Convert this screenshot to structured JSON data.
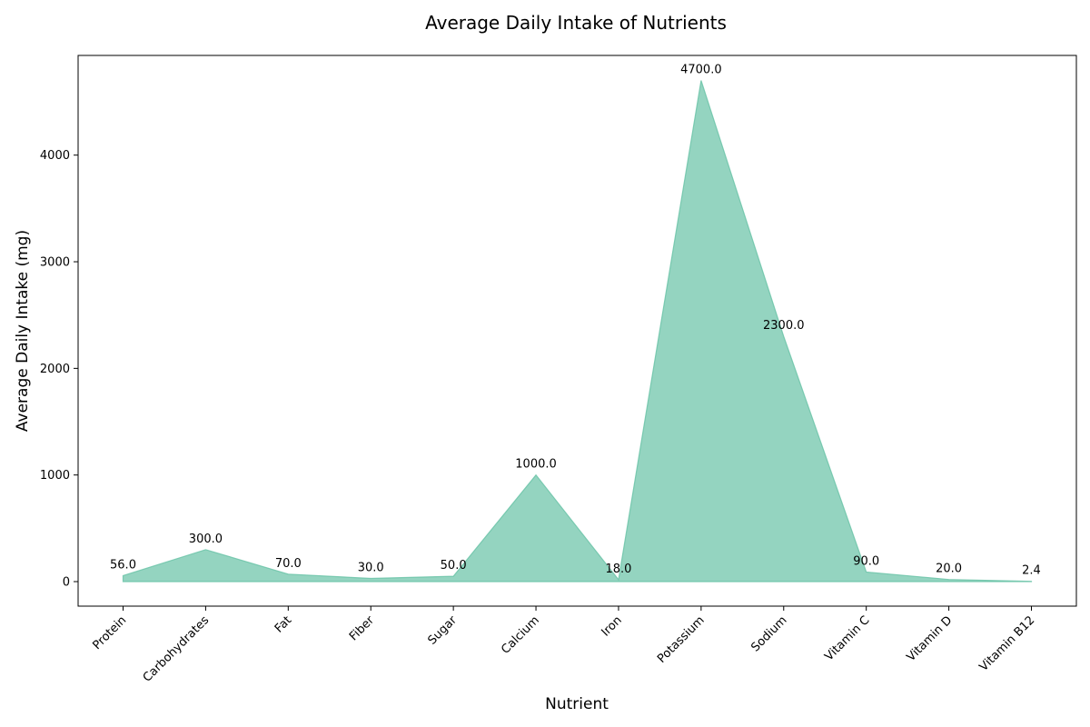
{
  "chart_data": {
    "type": "area",
    "title": "Average Daily Intake of Nutrients",
    "xlabel": "Nutrient",
    "ylabel": "Average Daily Intake (mg)",
    "categories": [
      "Protein",
      "Carbohydrates",
      "Fat",
      "Fiber",
      "Sugar",
      "Calcium",
      "Iron",
      "Potassium",
      "Sodium",
      "Vitamin C",
      "Vitamin D",
      "Vitamin B12"
    ],
    "values": [
      56.0,
      300.0,
      70.0,
      30.0,
      50.0,
      1000.0,
      18.0,
      4700.0,
      2300.0,
      90.0,
      20.0,
      2.4
    ],
    "data_labels": [
      "56.0",
      "300.0",
      "70.0",
      "30.0",
      "50.0",
      "1000.0",
      "18.0",
      "4700.0",
      "2300.0",
      "90.0",
      "20.0",
      "2.4"
    ],
    "yticks": [
      0,
      1000,
      2000,
      3000,
      4000
    ],
    "ylim": [
      -230,
      4935
    ],
    "fill_color": "#66c2a5",
    "grid": false,
    "legend": "none"
  }
}
